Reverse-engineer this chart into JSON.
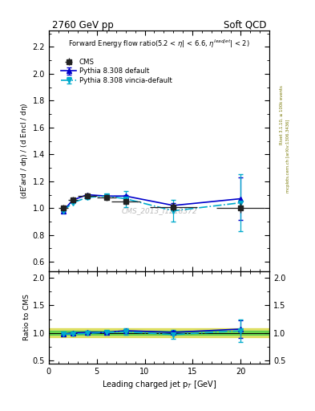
{
  "title_left": "2760 GeV pp",
  "title_right": "Soft QCD",
  "ylabel_main": "(dE$^{f}$ard / dη) / (d Encl / dη)",
  "ylabel_ratio": "Ratio to CMS",
  "xlabel": "Leading charged jet p$_{T}$ [GeV]",
  "watermark": "CMS_2013_I1218372",
  "right_label_top": "Rivet 3.1.10, ≥ 100k events",
  "right_label_bot": "mcplots.cern.ch [arXiv:1306.3436]",
  "cms_x": [
    1.5,
    2.5,
    4.0,
    6.0,
    8.0,
    13.0,
    20.0
  ],
  "cms_y": [
    1.0,
    1.06,
    1.09,
    1.08,
    1.05,
    1.01,
    1.0
  ],
  "cms_yerr": [
    0.025,
    0.025,
    0.025,
    0.025,
    0.025,
    0.035,
    0.035
  ],
  "cms_xerr": [
    0.5,
    0.5,
    1.0,
    1.0,
    1.5,
    2.5,
    2.5
  ],
  "py_default_x": [
    1.5,
    2.5,
    4.0,
    6.0,
    8.0,
    13.0,
    20.0
  ],
  "py_default_y": [
    0.98,
    1.06,
    1.1,
    1.09,
    1.09,
    1.02,
    1.07
  ],
  "py_default_yerr": [
    0.005,
    0.005,
    0.005,
    0.005,
    0.005,
    0.015,
    0.16
  ],
  "py_vincia_x": [
    1.5,
    2.5,
    4.0,
    6.0,
    8.0,
    13.0,
    20.0
  ],
  "py_vincia_y": [
    0.98,
    1.04,
    1.08,
    1.09,
    1.07,
    0.98,
    1.04
  ],
  "py_vincia_yerr": [
    0.005,
    0.005,
    0.01,
    0.015,
    0.06,
    0.08,
    0.21
  ],
  "ratio_default_y": [
    0.98,
    1.0,
    1.01,
    1.01,
    1.04,
    1.01,
    1.07
  ],
  "ratio_default_yerr": [
    0.005,
    0.005,
    0.005,
    0.01,
    0.015,
    0.025,
    0.16
  ],
  "ratio_vincia_y": [
    0.98,
    0.98,
    0.99,
    1.01,
    1.02,
    0.97,
    1.04
  ],
  "ratio_vincia_yerr": [
    0.005,
    0.005,
    0.01,
    0.015,
    0.06,
    0.08,
    0.21
  ],
  "ylim_main": [
    0.53,
    2.32
  ],
  "ylim_ratio": [
    0.44,
    2.12
  ],
  "xlim": [
    0,
    23
  ],
  "color_cms": "#222222",
  "color_default": "#0000cc",
  "color_vincia": "#00aacc",
  "color_band_green": "#44cc44",
  "color_band_yellow": "#cccc00"
}
